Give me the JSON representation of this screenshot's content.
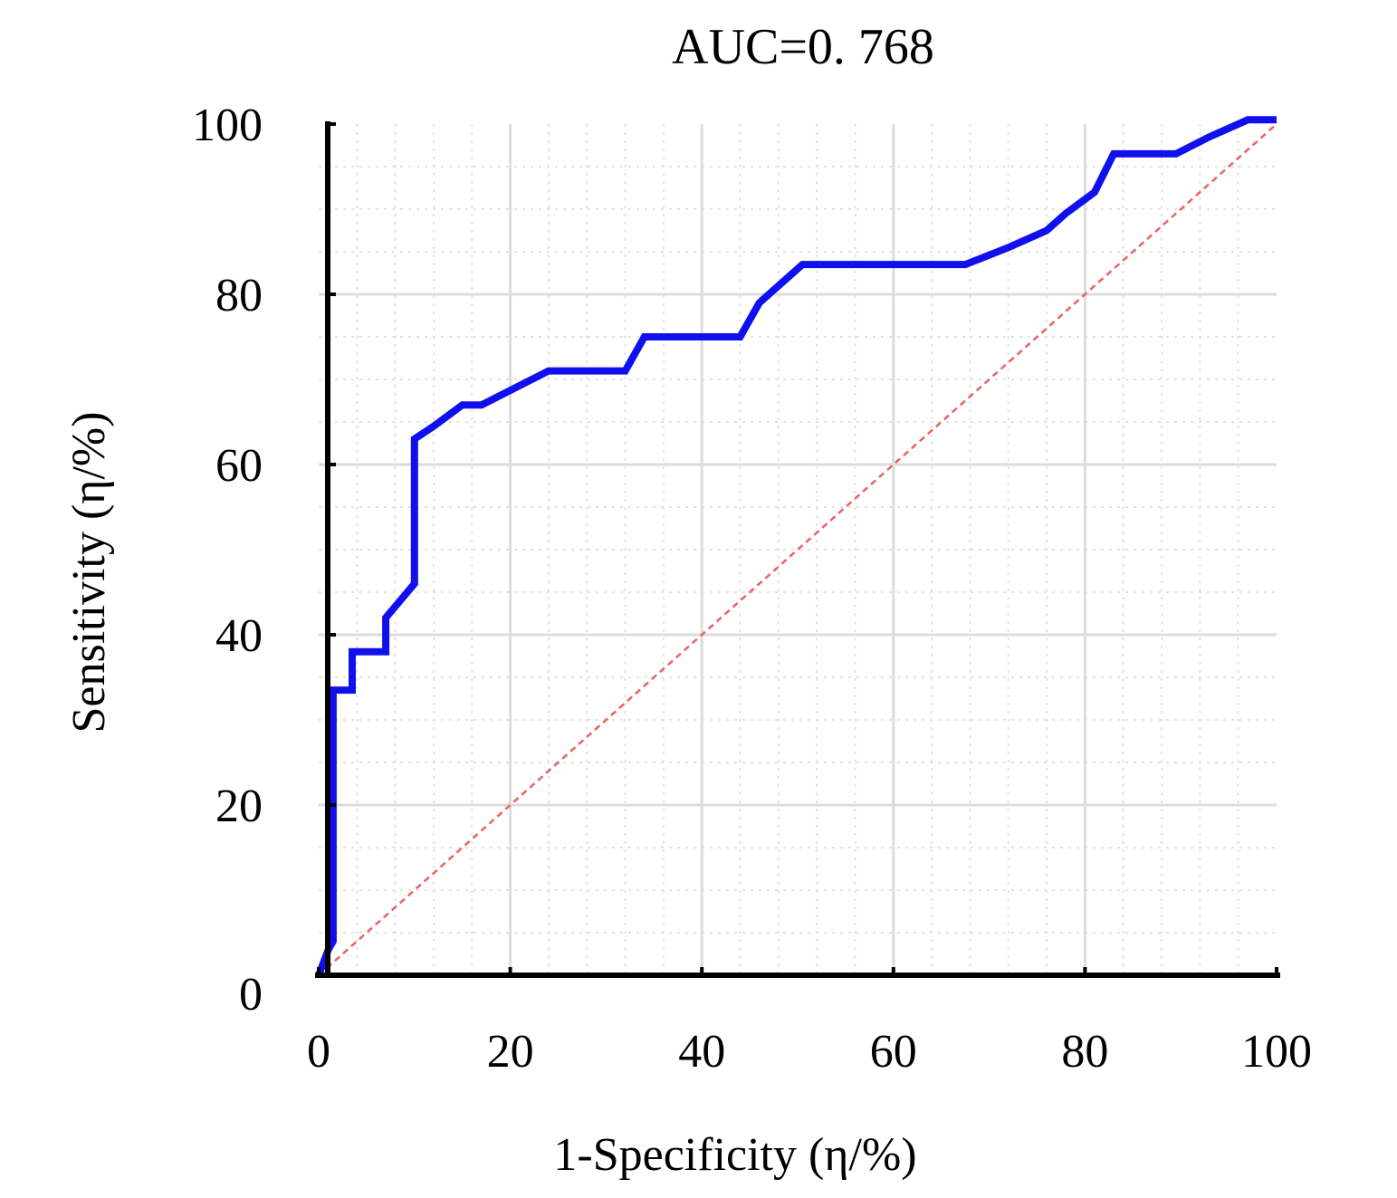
{
  "chart_data": {
    "type": "line",
    "title": "AUC=0. 768",
    "xlabel": "1-Specificity (η/%)",
    "ylabel": "Sensitivity (η/%)",
    "xlim": [
      0,
      100
    ],
    "ylim": [
      0,
      100
    ],
    "x_ticks": [
      "0",
      "20",
      "40",
      "60",
      "80",
      "100"
    ],
    "y_ticks": [
      "0",
      "20",
      "40",
      "60",
      "80",
      "100"
    ],
    "grid": true,
    "legend": "none",
    "series": [
      {
        "color": "#1010ee",
        "points": [
          [
            0,
            0
          ],
          [
            1,
            3
          ],
          [
            1.5,
            4
          ],
          [
            1.5,
            33.5
          ],
          [
            3.5,
            33.5
          ],
          [
            3.5,
            38
          ],
          [
            7,
            38
          ],
          [
            7,
            42
          ],
          [
            10,
            46
          ],
          [
            10,
            63
          ],
          [
            12,
            64.5
          ],
          [
            15,
            67
          ],
          [
            17,
            67
          ],
          [
            24,
            71
          ],
          [
            32,
            71
          ],
          [
            34,
            75
          ],
          [
            44,
            75
          ],
          [
            46,
            79
          ],
          [
            48,
            81
          ],
          [
            50.5,
            83.5
          ],
          [
            67.5,
            83.5
          ],
          [
            72,
            85.5
          ],
          [
            76,
            87.5
          ],
          [
            78,
            89.5
          ],
          [
            81,
            92
          ],
          [
            83,
            96.5
          ],
          [
            89.5,
            96.5
          ],
          [
            93,
            98.5
          ],
          [
            97,
            100.5
          ],
          [
            100,
            100.5
          ]
        ]
      },
      {
        "color": "#f06060",
        "style": "dashed",
        "points": [
          [
            0,
            0
          ],
          [
            100,
            100
          ]
        ]
      }
    ]
  }
}
